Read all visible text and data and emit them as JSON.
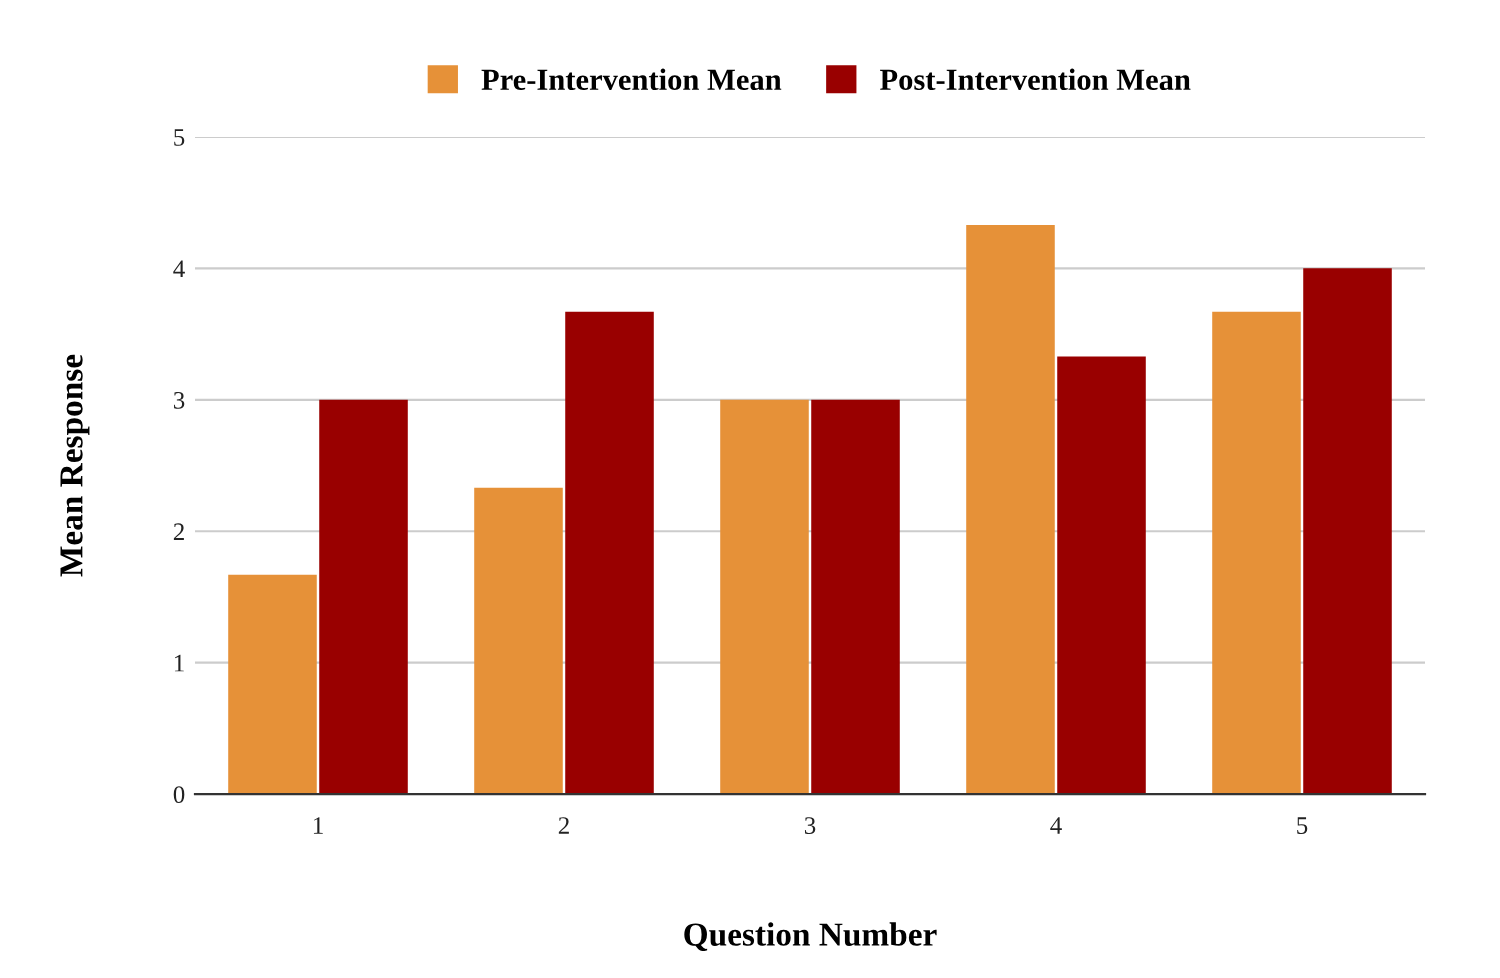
{
  "chart_data": {
    "type": "bar",
    "xlabel": "Question Number",
    "ylabel": "Mean Response",
    "categories": [
      "1",
      "2",
      "3",
      "4",
      "5"
    ],
    "series": [
      {
        "name": "Pre-Intervention Mean",
        "color": "#e69138",
        "values": [
          1.67,
          2.33,
          3.0,
          4.33,
          3.67
        ]
      },
      {
        "name": "Post-Intervention Mean",
        "color": "#990000",
        "values": [
          3.0,
          3.67,
          3.0,
          3.33,
          4.0
        ]
      }
    ],
    "ylim": [
      0,
      5
    ],
    "yticks": [
      0,
      1,
      2,
      3,
      4,
      5
    ],
    "grid": "y",
    "legend": "top"
  }
}
